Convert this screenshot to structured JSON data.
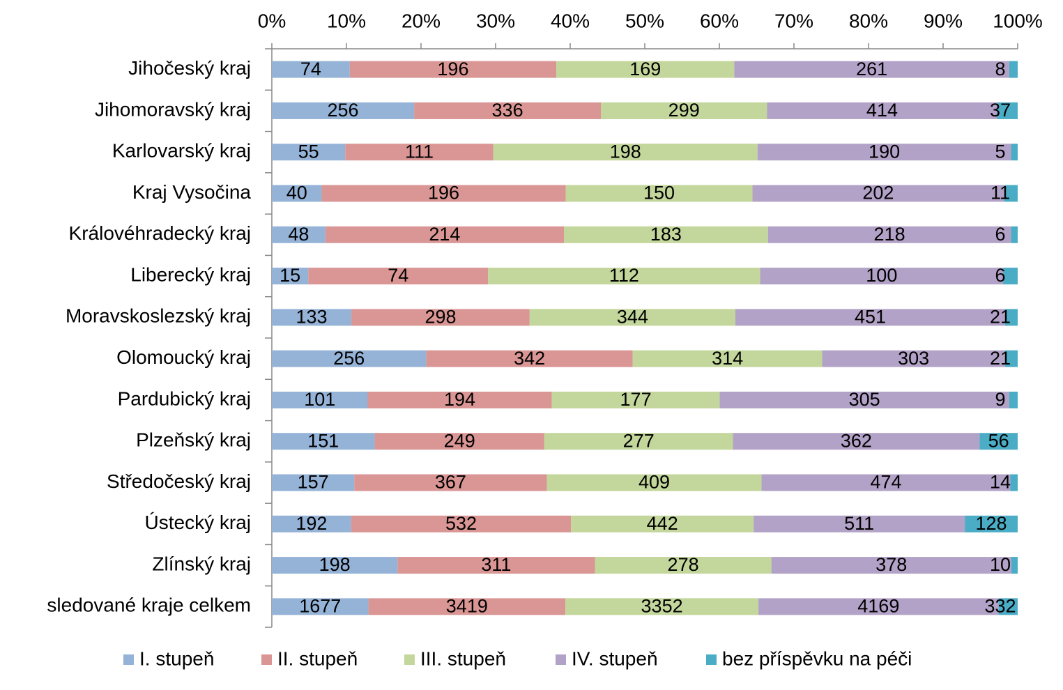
{
  "chart_data": {
    "type": "bar",
    "orientation": "horizontal",
    "stacking": "percent",
    "categories": [
      "Jihočeský kraj",
      "Jihomoravský kraj",
      "Karlovarský kraj",
      "Kraj Vysočina",
      "Královéhradecký kraj",
      "Liberecký kraj",
      "Moravskoslezský kraj",
      "Olomoucký kraj",
      "Pardubický kraj",
      "Plzeňský kraj",
      "Středočeský kraj",
      "Ústecký kraj",
      "Zlínský kraj",
      "sledované kraje celkem"
    ],
    "series": [
      {
        "name": "I. stupeň",
        "color": "#95b3d7",
        "values": [
          74,
          256,
          55,
          40,
          48,
          15,
          133,
          256,
          101,
          151,
          157,
          192,
          198,
          1677
        ]
      },
      {
        "name": "II. stupeň",
        "color": "#d99694",
        "values": [
          196,
          336,
          111,
          196,
          214,
          74,
          298,
          342,
          194,
          249,
          367,
          532,
          311,
          3419
        ]
      },
      {
        "name": "III. stupeň",
        "color": "#c3d69b",
        "values": [
          169,
          299,
          198,
          150,
          183,
          112,
          344,
          314,
          177,
          277,
          409,
          442,
          278,
          3352
        ]
      },
      {
        "name": "IV. stupeň",
        "color": "#b3a2c7",
        "values": [
          261,
          414,
          190,
          202,
          218,
          100,
          451,
          303,
          305,
          362,
          474,
          511,
          378,
          4169
        ]
      },
      {
        "name": "bez příspěvku na péči",
        "color": "#4bacc6",
        "values": [
          8,
          37,
          5,
          11,
          6,
          6,
          21,
          21,
          9,
          56,
          14,
          128,
          10,
          332
        ]
      }
    ],
    "xlim": [
      0,
      100
    ],
    "xticks": [
      {
        "value": 0,
        "label": "0%"
      },
      {
        "value": 10,
        "label": "10%"
      },
      {
        "value": 20,
        "label": "20%"
      },
      {
        "value": 30,
        "label": "30%"
      },
      {
        "value": 40,
        "label": "40%"
      },
      {
        "value": 50,
        "label": "50%"
      },
      {
        "value": 60,
        "label": "60%"
      },
      {
        "value": 70,
        "label": "70%"
      },
      {
        "value": 80,
        "label": "80%"
      },
      {
        "value": 90,
        "label": "90%"
      },
      {
        "value": 100,
        "label": "100%"
      }
    ],
    "legend": "bottom"
  }
}
